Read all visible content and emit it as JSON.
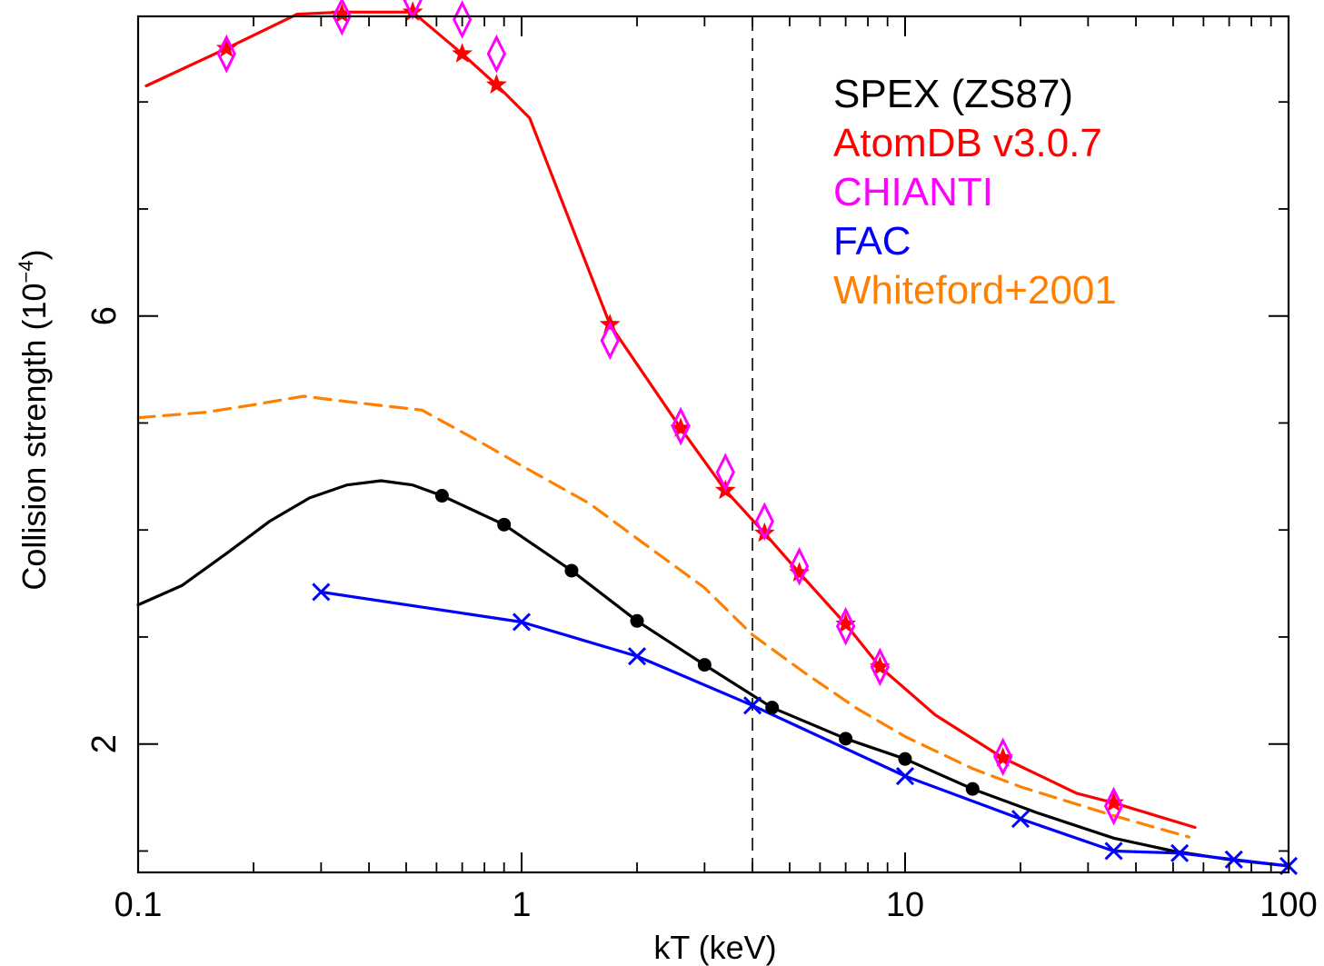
{
  "chart_data": {
    "type": "line",
    "xlabel": "kT (keV)",
    "ylabel_main": "Collision strength (10",
    "ylabel_exp": "−4",
    "ylabel_close": ")",
    "xscale": "log",
    "xlim": [
      0.1,
      100
    ],
    "ylim": [
      0.8,
      8.8
    ],
    "xticks": [
      {
        "value": 0.1,
        "label": "0.1"
      },
      {
        "value": 1,
        "label": "1"
      },
      {
        "value": 10,
        "label": "10"
      },
      {
        "value": 100,
        "label": "100"
      }
    ],
    "yticks": [
      {
        "value": 2,
        "label": "2"
      },
      {
        "value": 6,
        "label": "6"
      }
    ],
    "yminor_ticks": [
      1,
      3,
      4,
      5,
      7,
      8
    ],
    "reference_line": {
      "x": 4.0,
      "style": "dashed",
      "color": "#000000"
    },
    "legend_position": "top-right",
    "series": [
      {
        "name": "SPEX (ZS87)",
        "color": "#000000",
        "line_style": "solid",
        "marker": "none",
        "x": [
          0.1,
          0.13,
          0.17,
          0.22,
          0.28,
          0.35,
          0.43,
          0.52,
          0.62,
          0.9,
          1.35,
          2.0,
          3.0,
          4.5,
          7.0,
          10.0,
          15.0,
          22.0,
          35.0,
          50.0,
          70.0,
          100.0
        ],
        "y": [
          3.3,
          3.48,
          3.78,
          4.08,
          4.3,
          4.42,
          4.46,
          4.42,
          4.32,
          4.05,
          3.62,
          3.15,
          2.74,
          2.34,
          2.05,
          1.86,
          1.58,
          1.36,
          1.12,
          1.0,
          0.92,
          0.86
        ]
      },
      {
        "name": "SPEX (ZS87) points",
        "color": "#000000",
        "line_style": "none",
        "marker": "dot",
        "x": [
          0.62,
          0.9,
          1.35,
          2.0,
          3.0,
          4.5,
          7.0,
          10.0,
          15.0
        ],
        "y": [
          4.32,
          4.05,
          3.62,
          3.15,
          2.74,
          2.34,
          2.05,
          1.86,
          1.58
        ]
      },
      {
        "name": "AtomDB v3.0.7",
        "color": "#ff0000",
        "line_style": "solid",
        "marker": "star",
        "x": [
          0.105,
          0.17,
          0.26,
          0.34,
          0.52,
          0.7,
          0.86,
          1.05,
          1.7,
          2.6,
          3.4,
          4.3,
          5.3,
          7.0,
          8.6,
          12.0,
          18.0,
          28.0,
          35.0,
          57.0
        ],
        "y": [
          8.15,
          8.5,
          8.82,
          8.84,
          8.84,
          8.45,
          8.16,
          7.85,
          5.92,
          4.95,
          4.37,
          3.97,
          3.6,
          3.12,
          2.72,
          2.27,
          1.87,
          1.54,
          1.45,
          1.22
        ],
        "star_x": [
          0.17,
          0.34,
          0.52,
          0.7,
          0.86,
          1.7,
          2.6,
          3.4,
          4.3,
          5.3,
          7.0,
          8.6,
          18.0,
          35.0
        ],
        "star_y": [
          8.5,
          8.82,
          8.84,
          8.45,
          8.16,
          5.92,
          4.95,
          4.37,
          3.97,
          3.6,
          3.12,
          2.72,
          1.87,
          1.45
        ]
      },
      {
        "name": "CHIANTI",
        "color": "#ff00ff",
        "line_style": "none",
        "marker": "diamond",
        "x": [
          0.17,
          0.34,
          0.52,
          0.7,
          0.86,
          1.7,
          2.6,
          3.4,
          4.3,
          5.3,
          7.0,
          8.6,
          18.0,
          35.0
        ],
        "y": [
          8.45,
          8.8,
          8.95,
          8.77,
          8.45,
          5.77,
          4.97,
          4.54,
          4.08,
          3.66,
          3.1,
          2.72,
          1.88,
          1.42
        ]
      },
      {
        "name": "FAC",
        "color": "#0000ff",
        "line_style": "solid",
        "marker": "x",
        "x": [
          0.3,
          1.0,
          2.0,
          4.0,
          10.0,
          20.0,
          35.0,
          52.0,
          72.0,
          100.0
        ],
        "y": [
          3.42,
          3.14,
          2.82,
          2.36,
          1.7,
          1.3,
          1.0,
          0.98,
          0.92,
          0.86
        ]
      },
      {
        "name": "Whiteford+2001",
        "color": "#ff8000",
        "line_style": "dashed",
        "marker": "none",
        "x": [
          0.1,
          0.15,
          0.2,
          0.27,
          0.35,
          0.55,
          0.8,
          1.0,
          1.5,
          2.0,
          3.0,
          4.0,
          5.5,
          7.5,
          10.0,
          15.0,
          20.0,
          35.0,
          55.0
        ],
        "y": [
          5.05,
          5.1,
          5.17,
          5.25,
          5.2,
          5.12,
          4.8,
          4.6,
          4.25,
          3.92,
          3.46,
          3.02,
          2.66,
          2.33,
          2.07,
          1.77,
          1.6,
          1.33,
          1.13
        ]
      }
    ],
    "legend": [
      {
        "label": "SPEX (ZS87)",
        "color": "#000000"
      },
      {
        "label": "AtomDB v3.0.7",
        "color": "#ff0000"
      },
      {
        "label": "CHIANTI",
        "color": "#ff00ff"
      },
      {
        "label": "FAC",
        "color": "#0000ff"
      },
      {
        "label": "Whiteford+2001",
        "color": "#ff8000"
      }
    ]
  }
}
